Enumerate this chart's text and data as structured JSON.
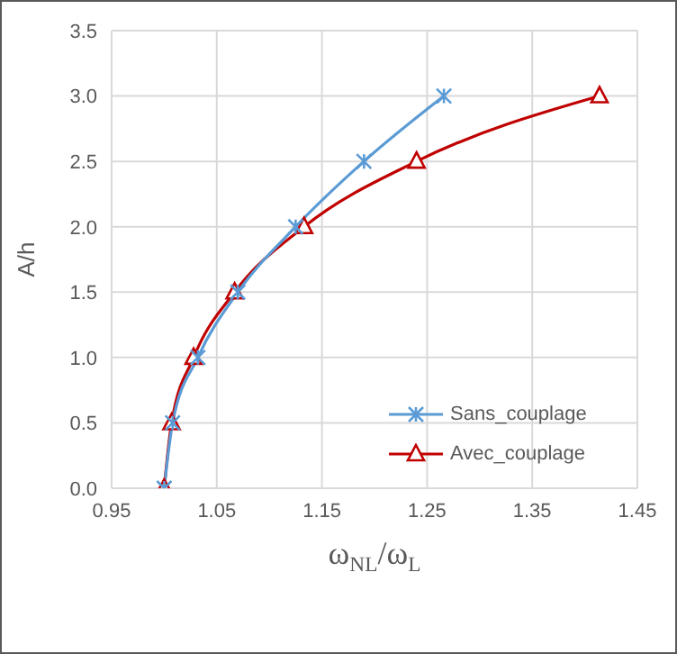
{
  "chart_data": {
    "type": "line",
    "xlabel": "ω$_{NL}$/ω$_{L}$",
    "ylabel": "A/h",
    "xlim": [
      0.95,
      1.45
    ],
    "xticks": [
      {
        "value": 0.95,
        "label": "0.95"
      },
      {
        "value": 1.05,
        "label": "1.05"
      },
      {
        "value": 1.15,
        "label": "1.15"
      },
      {
        "value": 1.25,
        "label": "1.25"
      },
      {
        "value": 1.35,
        "label": "1.35"
      },
      {
        "value": 1.45,
        "label": "1.45"
      }
    ],
    "ylim": [
      0,
      3.5
    ],
    "yticks": [
      {
        "value": 0,
        "label": "0.0"
      },
      {
        "value": 0.5,
        "label": "0.5"
      },
      {
        "value": 1,
        "label": "1.0"
      },
      {
        "value": 1.5,
        "label": "1.5"
      },
      {
        "value": 2,
        "label": "2.0"
      },
      {
        "value": 2.5,
        "label": "2.5"
      },
      {
        "value": 3,
        "label": "3.0"
      },
      {
        "value": 3.5,
        "label": "3.5"
      }
    ],
    "grid": true,
    "legend": "right",
    "series": [
      {
        "name": "Sans_couplage",
        "color": "#5b9bd5",
        "marker": "cross",
        "x": [
          1.0,
          1.008,
          1.032,
          1.07,
          1.125,
          1.19,
          1.266
        ],
        "values": [
          0,
          0.5,
          1.0,
          1.5,
          2.0,
          2.5,
          3.0
        ]
      },
      {
        "name": "Avec_couplage",
        "color": "#c00000",
        "marker": "triangle",
        "x": [
          1.0,
          1.007,
          1.028,
          1.067,
          1.133,
          1.24,
          1.414
        ],
        "values": [
          0,
          0.5,
          1.0,
          1.5,
          2.0,
          2.5,
          3.0
        ]
      }
    ]
  }
}
